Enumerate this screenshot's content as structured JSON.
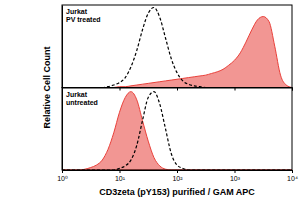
{
  "chart_data": [
    {
      "type": "area",
      "y_label": "Relative Cell Count",
      "annotation": [
        "Jurkat",
        "PV treated"
      ],
      "log": "x",
      "tick_labels": false,
      "xlim": [
        1,
        10000
      ],
      "xticks": [
        {
          "value": 1,
          "label": "10⁰"
        },
        {
          "value": 10,
          "label": "10¹"
        },
        {
          "value": 100,
          "label": "10²"
        },
        {
          "value": 1000,
          "label": "10³"
        },
        {
          "value": 10000,
          "label": "10⁴"
        }
      ],
      "ylim": [
        0,
        100
      ],
      "yticks": [],
      "x": [
        1,
        1.26,
        1.58,
        2,
        2.51,
        3.16,
        3.98,
        5.01,
        6.31,
        7.94,
        10,
        12.6,
        15.8,
        20,
        25.1,
        31.6,
        39.8,
        50.1,
        63.1,
        79.4,
        100,
        126,
        158,
        200,
        251,
        316,
        398,
        501,
        631,
        794,
        1000,
        1260,
        1580,
        2000,
        2510,
        3160,
        3980,
        5010,
        6310,
        7940,
        10000
      ],
      "series": [
        {
          "type": "area",
          "color": "#e8403a",
          "line_style": "solid",
          "values": [
            0,
            0,
            0,
            0,
            0,
            0,
            0,
            0,
            0,
            0,
            1,
            1,
            2,
            3,
            4,
            5,
            6,
            7,
            8,
            9,
            10,
            11,
            12,
            13,
            14,
            15,
            17,
            19,
            22,
            27,
            33,
            42,
            55,
            70,
            82,
            86,
            80,
            50,
            15,
            3,
            0
          ]
        },
        {
          "type": "line",
          "color": "#000000",
          "line_style": "dashed",
          "values": [
            0,
            0,
            0,
            0,
            0,
            0,
            0,
            0,
            1,
            3,
            6,
            12,
            25,
            45,
            70,
            90,
            97,
            85,
            60,
            35,
            18,
            8,
            4,
            2,
            1,
            0,
            0,
            0,
            0,
            0,
            0,
            0,
            0,
            0,
            0,
            0,
            0,
            0,
            0,
            0,
            0
          ]
        }
      ]
    },
    {
      "type": "area",
      "x_label": "CD3zeta (pY153) purified / GAM APC",
      "annotation": [
        "Jurkat",
        "untreated"
      ],
      "log": "x",
      "tick_labels": "x",
      "xlim": [
        1,
        10000
      ],
      "xticks": [
        {
          "value": 1,
          "label": "10⁰"
        },
        {
          "value": 10,
          "label": "10¹"
        },
        {
          "value": 100,
          "label": "10²"
        },
        {
          "value": 1000,
          "label": "10³"
        },
        {
          "value": 10000,
          "label": "10⁴"
        }
      ],
      "ylim": [
        0,
        100
      ],
      "yticks": [],
      "x": [
        1,
        1.26,
        1.58,
        2,
        2.51,
        3.16,
        3.98,
        5.01,
        6.31,
        7.94,
        10,
        12.6,
        15.8,
        20,
        25.1,
        31.6,
        39.8,
        50.1,
        63.1,
        79.4,
        100,
        126,
        158,
        200,
        251,
        316,
        398,
        501,
        631,
        794,
        1000,
        1260,
        1580,
        2000,
        2510,
        3160,
        3980,
        5010,
        6310,
        7940,
        10000
      ],
      "series": [
        {
          "type": "area",
          "color": "#e8403a",
          "line_style": "solid",
          "values": [
            0,
            0,
            0,
            0,
            1,
            3,
            6,
            12,
            25,
            45,
            70,
            88,
            95,
            85,
            60,
            35,
            15,
            5,
            1,
            0,
            0,
            0,
            0,
            0,
            0,
            0,
            0,
            0,
            0,
            0,
            0,
            0,
            0,
            0,
            0,
            0,
            0,
            0,
            0,
            0,
            0
          ]
        },
        {
          "type": "line",
          "color": "#000000",
          "line_style": "dashed",
          "values": [
            0,
            0,
            0,
            0,
            0,
            0,
            0,
            0,
            0,
            0,
            2,
            5,
            12,
            30,
            60,
            88,
            95,
            80,
            50,
            20,
            6,
            2,
            0,
            0,
            0,
            0,
            0,
            0,
            0,
            0,
            0,
            0,
            0,
            0,
            0,
            0,
            0,
            0,
            0,
            0,
            0
          ]
        }
      ]
    }
  ]
}
